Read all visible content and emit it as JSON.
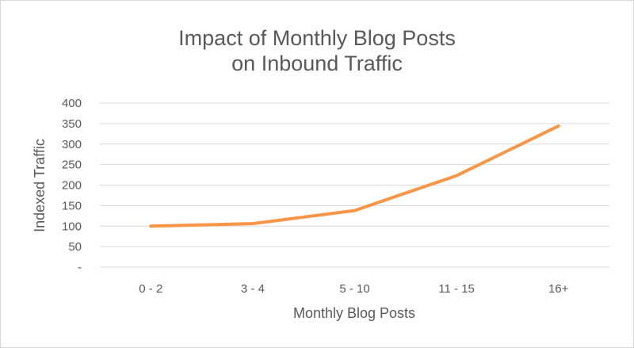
{
  "chart_data": {
    "type": "line",
    "title_lines": [
      "Impact of Monthly Blog Posts",
      "on Inbound Traffic"
    ],
    "xlabel": "Monthly Blog Posts",
    "ylabel": "Indexed Traffic",
    "categories": [
      "0 - 2",
      "3 - 4",
      "5 - 10",
      "11 - 15",
      "16+"
    ],
    "yticks": [
      "-",
      "50",
      "100",
      "150",
      "200",
      "250",
      "300",
      "350",
      "400"
    ],
    "ylim": [
      0,
      400
    ],
    "grid": true,
    "legend": "none",
    "series": [
      {
        "color": "#f79646",
        "values": [
          100,
          106,
          138,
          223,
          344
        ]
      }
    ]
  }
}
